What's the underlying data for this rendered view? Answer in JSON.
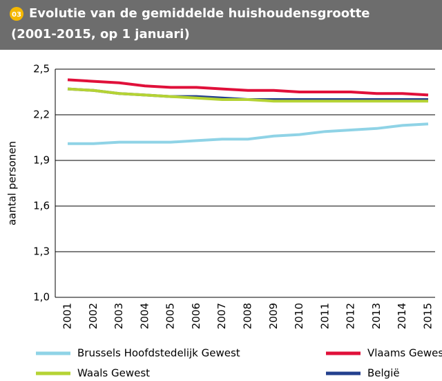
{
  "header": {
    "badge": "03",
    "title_line1": "Evolutie van de gemiddelde huishoudensgrootte",
    "title_line2": "(2001-2015, op 1 januari)"
  },
  "chart_data": {
    "type": "line",
    "ylabel": "aantal personen",
    "categories": [
      "2001",
      "2002",
      "2003",
      "2004",
      "2005",
      "2006",
      "2007",
      "2008",
      "2009",
      "2010",
      "2011",
      "2012",
      "2013",
      "2014",
      "2015"
    ],
    "ylim": [
      1.0,
      2.5
    ],
    "yticks": [
      {
        "value": 1.0,
        "label": "1,0"
      },
      {
        "value": 1.3,
        "label": "1,3"
      },
      {
        "value": 1.6,
        "label": "1,6"
      },
      {
        "value": 1.9,
        "label": "1,9"
      },
      {
        "value": 2.2,
        "label": "2,2"
      },
      {
        "value": 2.5,
        "label": "2,5"
      }
    ],
    "grid": true,
    "series": [
      {
        "name": "Brussels Hoofdstedelijk Gewest",
        "color": "#8fd3e6",
        "values": [
          2.01,
          2.01,
          2.02,
          2.02,
          2.02,
          2.03,
          2.04,
          2.04,
          2.06,
          2.07,
          2.09,
          2.1,
          2.11,
          2.13,
          2.14
        ]
      },
      {
        "name": "Vlaams Gewest",
        "color": "#e0103a",
        "values": [
          2.43,
          2.42,
          2.41,
          2.39,
          2.38,
          2.38,
          2.37,
          2.36,
          2.36,
          2.35,
          2.35,
          2.35,
          2.34,
          2.34,
          2.33
        ]
      },
      {
        "name": "Waals Gewest",
        "color": "#b5d334",
        "values": [
          2.37,
          2.36,
          2.34,
          2.33,
          2.32,
          2.31,
          2.3,
          2.3,
          2.29,
          2.29,
          2.29,
          2.29,
          2.29,
          2.29,
          2.29
        ]
      },
      {
        "name": "België",
        "color": "#23408e",
        "values": [
          2.37,
          2.36,
          2.34,
          2.33,
          2.32,
          2.32,
          2.31,
          2.3,
          2.3,
          2.3,
          2.3,
          2.3,
          2.3,
          2.3,
          2.3
        ]
      }
    ]
  }
}
